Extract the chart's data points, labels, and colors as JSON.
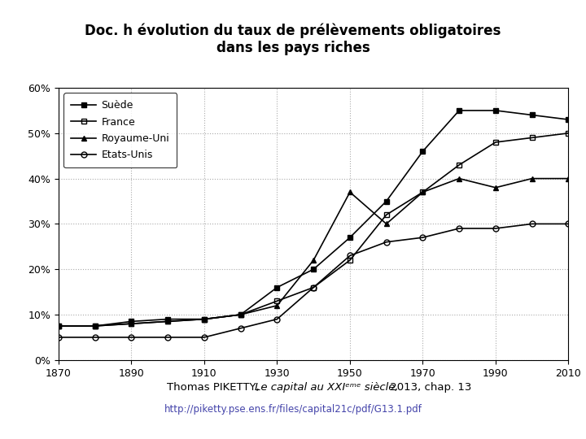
{
  "title": "Doc. h évolution du taux de prélèvements obligatoires\ndans les pays riches",
  "title_bg": "#f2c49e",
  "xlabel": "",
  "ylabel": "",
  "ylim": [
    0,
    60
  ],
  "yticks": [
    0,
    10,
    20,
    30,
    40,
    50,
    60
  ],
  "ytick_labels": [
    "0%",
    "10%",
    "20%",
    "30%",
    "40%",
    "50%",
    "60%"
  ],
  "xlim": [
    1870,
    2010
  ],
  "xticks": [
    1870,
    1890,
    1910,
    1930,
    1950,
    1970,
    1990,
    2010
  ],
  "suede": {
    "x": [
      1870,
      1880,
      1890,
      1900,
      1910,
      1920,
      1930,
      1940,
      1950,
      1960,
      1970,
      1980,
      1990,
      2000,
      2010
    ],
    "y": [
      7.5,
      7.5,
      8.5,
      9,
      9,
      10,
      16,
      20,
      27,
      35,
      46,
      55,
      55,
      54,
      53
    ],
    "label": "Suède",
    "marker": "s",
    "fillstyle": "full",
    "color": "black",
    "linestyle": "-"
  },
  "france": {
    "x": [
      1870,
      1880,
      1890,
      1900,
      1910,
      1920,
      1930,
      1940,
      1950,
      1960,
      1970,
      1980,
      1990,
      2000,
      2010
    ],
    "y": [
      7.5,
      7.5,
      8,
      8.5,
      9,
      10,
      13,
      16,
      22,
      32,
      37,
      43,
      48,
      49,
      50
    ],
    "label": "France",
    "marker": "s",
    "fillstyle": "none",
    "color": "black",
    "linestyle": "-"
  },
  "royaume_uni": {
    "x": [
      1870,
      1880,
      1890,
      1900,
      1910,
      1920,
      1930,
      1940,
      1950,
      1960,
      1970,
      1980,
      1990,
      2000,
      2010
    ],
    "y": [
      7.5,
      7.5,
      8,
      8.5,
      9,
      10,
      12,
      22,
      37,
      30,
      37,
      40,
      38,
      40,
      40
    ],
    "label": "Royaume-Uni",
    "marker": "^",
    "fillstyle": "full",
    "color": "black",
    "linestyle": "-"
  },
  "etats_unis": {
    "x": [
      1870,
      1880,
      1890,
      1900,
      1910,
      1920,
      1930,
      1940,
      1950,
      1960,
      1970,
      1980,
      1990,
      2000,
      2010
    ],
    "y": [
      5,
      5,
      5,
      5,
      5,
      7,
      9,
      16,
      23,
      26,
      27,
      29,
      29,
      30,
      30
    ],
    "label": "Etats-Unis",
    "marker": "o",
    "fillstyle": "none",
    "color": "black",
    "linestyle": "-"
  },
  "grid_color": "#aaaaaa",
  "bg_color": "white",
  "footnote_url": "http://piketty.pse.ens.fr/files/capital21c/pdf/G13.1.pdf",
  "footnote_url_color": "#4444aa"
}
